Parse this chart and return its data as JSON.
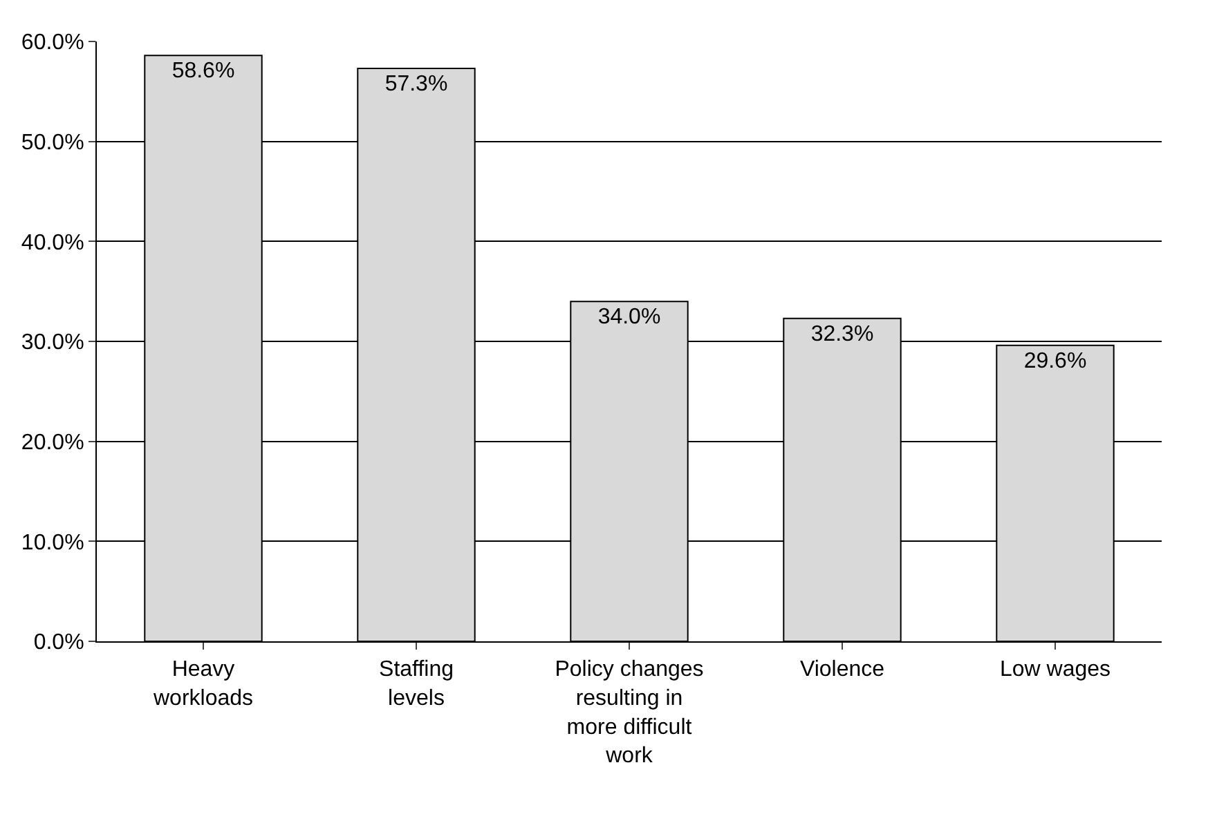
{
  "chart_data": {
    "type": "bar",
    "categories": [
      "Heavy workloads",
      "Staffing levels",
      "Policy changes resulting in more difficult work",
      "Violence",
      "Low wages"
    ],
    "values": [
      58.6,
      57.3,
      34.0,
      32.3,
      29.6
    ],
    "value_labels": [
      "58.6%",
      "57.3%",
      "34.0%",
      "32.3%",
      "29.6%"
    ],
    "color": "#d9d9d9",
    "ylim": [
      0,
      60
    ],
    "yticks": [
      {
        "value": 0,
        "label": "0.0%"
      },
      {
        "value": 10,
        "label": "10.0%"
      },
      {
        "value": 20,
        "label": "20.0%"
      },
      {
        "value": 30,
        "label": "30.0%"
      },
      {
        "value": 40,
        "label": "40.0%"
      },
      {
        "value": 50,
        "label": "50.0%"
      },
      {
        "value": 60,
        "label": "60.0%"
      }
    ],
    "grid": "y"
  }
}
